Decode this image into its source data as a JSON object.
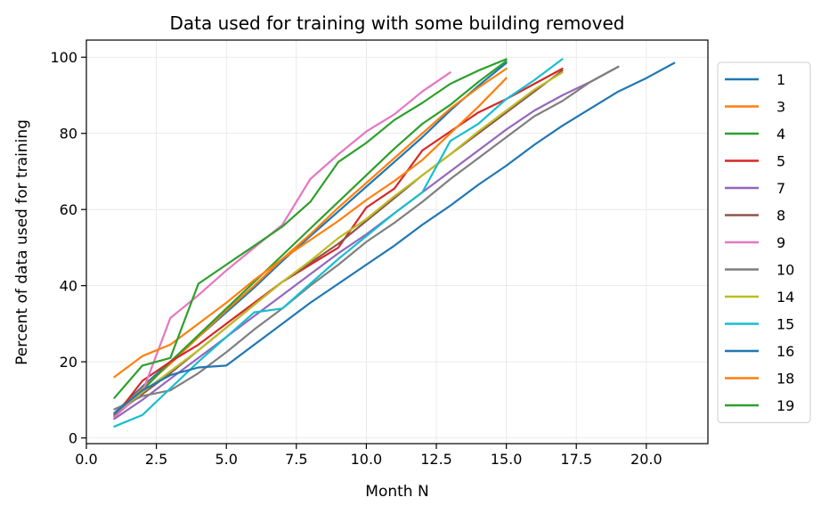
{
  "chart_data": {
    "type": "line",
    "title": "Data used for training with some building removed",
    "xlabel": "Month N",
    "ylabel": "Percent of data used for training",
    "xlim": [
      0,
      22.2
    ],
    "ylim": [
      -1.5,
      104.5
    ],
    "xticks": [
      "0.0",
      "2.5",
      "5.0",
      "7.5",
      "10.0",
      "12.5",
      "15.0",
      "17.5",
      "20.0"
    ],
    "yticks": [
      "0",
      "20",
      "40",
      "60",
      "80",
      "100"
    ],
    "grid": true,
    "legend_position": "right",
    "series": [
      {
        "name": "1",
        "color": "#1f77b4",
        "x": [
          1,
          2,
          3,
          4,
          5,
          6,
          7,
          8,
          9,
          10,
          11,
          12,
          13,
          14,
          15
        ],
        "y": [
          6.5,
          13.5,
          20,
          26.5,
          33,
          39.5,
          46.5,
          53,
          59.5,
          66,
          72.5,
          79,
          86,
          92.5,
          98.5
        ]
      },
      {
        "name": "3",
        "color": "#ff7f0e",
        "x": [
          1,
          2,
          3,
          4,
          5,
          6,
          7,
          8,
          9,
          10,
          11,
          12,
          13,
          14,
          15
        ],
        "y": [
          6,
          13,
          19.5,
          26.5,
          33.5,
          40,
          47,
          53.5,
          60.5,
          67,
          73.5,
          80,
          86.5,
          92,
          97
        ]
      },
      {
        "name": "4",
        "color": "#2ca02c",
        "x": [
          1,
          2,
          3,
          4,
          5,
          6,
          7,
          8,
          9,
          10,
          11,
          12,
          13,
          14,
          15
        ],
        "y": [
          5.5,
          12.5,
          20,
          27,
          34,
          41,
          48,
          55,
          62,
          69,
          76,
          82.5,
          87.5,
          93.5,
          99
        ]
      },
      {
        "name": "5",
        "color": "#d62728",
        "x": [
          1,
          2,
          3,
          4,
          5,
          6,
          7,
          8,
          9,
          10,
          11,
          12,
          13,
          14,
          15,
          16,
          17
        ],
        "y": [
          5.5,
          15,
          20,
          24.5,
          30,
          35.5,
          41,
          45.5,
          50,
          60.5,
          65.5,
          75.5,
          80.5,
          85.5,
          89,
          93,
          97
        ]
      },
      {
        "name": "7",
        "color": "#9467bd",
        "x": [
          1,
          2,
          3,
          4,
          5,
          6,
          7,
          8,
          9,
          10,
          11,
          12,
          13,
          14,
          15,
          16,
          17,
          18,
          19
        ],
        "y": [
          5,
          10,
          15.5,
          21,
          26.5,
          32,
          37.5,
          43,
          48.5,
          53.5,
          59,
          64.5,
          70,
          75.5,
          81,
          86,
          90,
          93.5,
          97.5
        ]
      },
      {
        "name": "8",
        "color": "#8c564b",
        "x": [
          1,
          2,
          3,
          4,
          5,
          6,
          7,
          8,
          9,
          10,
          11,
          12,
          13,
          14,
          15,
          16,
          17
        ],
        "y": [
          6,
          11.5,
          17,
          23,
          29,
          35,
          41,
          46,
          51,
          57,
          63,
          69,
          74.5,
          80,
          85.5,
          91,
          96.5
        ]
      },
      {
        "name": "9",
        "color": "#e377c2",
        "x": [
          1,
          2,
          3,
          4,
          5,
          6,
          7,
          8,
          9,
          10,
          11,
          12,
          13
        ],
        "y": [
          5.5,
          12,
          31.5,
          37.5,
          44,
          50,
          56,
          68,
          74.5,
          80.5,
          85,
          91,
          96
        ]
      },
      {
        "name": "10",
        "color": "#7f7f7f",
        "x": [
          1,
          2,
          3,
          4,
          5,
          6,
          7,
          8,
          9,
          10,
          11,
          12,
          13,
          14,
          15,
          16,
          17,
          18,
          19
        ],
        "y": [
          7.5,
          11,
          12.5,
          17,
          22.5,
          28.5,
          34,
          40,
          45.5,
          51.5,
          56.5,
          62,
          68,
          73.5,
          79,
          84.5,
          88.5,
          93.5,
          97.5
        ]
      },
      {
        "name": "14",
        "color": "#bcbd22",
        "x": [
          1,
          2,
          3,
          4,
          5,
          6,
          7,
          8,
          9,
          10,
          11,
          12,
          13,
          14,
          15,
          16,
          17
        ],
        "y": [
          6.5,
          12,
          17.5,
          23,
          29,
          35,
          41,
          46.5,
          52.5,
          57.5,
          63.5,
          69,
          74.5,
          80.5,
          86,
          91.5,
          96
        ]
      },
      {
        "name": "15",
        "color": "#17becf",
        "x": [
          1,
          2,
          3,
          4,
          5,
          6,
          7,
          8,
          9,
          10,
          11,
          12,
          13,
          14,
          15,
          16,
          17
        ],
        "y": [
          3,
          6,
          13,
          20,
          26.5,
          33,
          34,
          40.5,
          47,
          53,
          59,
          64.5,
          78,
          82.5,
          89,
          94,
          99.5
        ]
      },
      {
        "name": "16",
        "color": "#1f77b4",
        "x": [
          1,
          2,
          3,
          4,
          5,
          6,
          7,
          8,
          9,
          10,
          11,
          12,
          13,
          14,
          15,
          16,
          17,
          18,
          19,
          20,
          21
        ],
        "y": [
          6.5,
          12.5,
          16.5,
          18.5,
          19,
          24.5,
          30,
          35.5,
          40.5,
          45.5,
          50.5,
          56,
          61,
          66.5,
          71.5,
          77,
          82,
          86.5,
          91,
          94.5,
          98.5
        ]
      },
      {
        "name": "18",
        "color": "#ff7f0e",
        "x": [
          1,
          2,
          3,
          4,
          5,
          6,
          7,
          8,
          9,
          10,
          11,
          12,
          13,
          14,
          15
        ],
        "y": [
          16,
          21.5,
          24.5,
          30,
          35.5,
          41.5,
          47,
          52,
          57,
          62.5,
          67.5,
          73,
          80,
          87,
          94.5
        ]
      },
      {
        "name": "19",
        "color": "#2ca02c",
        "x": [
          1,
          2,
          3,
          4,
          5,
          6,
          7,
          8,
          9,
          10,
          11,
          12,
          13,
          14,
          15
        ],
        "y": [
          10.5,
          19,
          21,
          40.5,
          45.5,
          50.5,
          55.5,
          62,
          72.5,
          77.5,
          83.5,
          88,
          93,
          96.5,
          99.5
        ]
      }
    ]
  }
}
